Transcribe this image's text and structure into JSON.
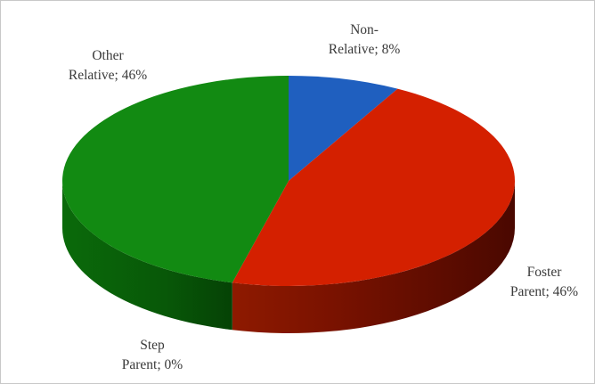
{
  "chart_data": {
    "type": "pie",
    "title": "",
    "three_d": true,
    "legend": "none",
    "data_labels": "category name and percentage, outside slices",
    "slices": [
      {
        "name": "Non-Relative",
        "label_line1": "Non-",
        "label_line2": "Relative; 8%",
        "value": 8,
        "color": "#1f5fbf"
      },
      {
        "name": "Foster Parent",
        "label_line1": "Foster",
        "label_line2": "Parent; 46%",
        "value": 46,
        "color": "#d42000"
      },
      {
        "name": "Step Parent",
        "label_line1": "Step",
        "label_line2": "Parent; 0%",
        "value": 0,
        "color": "#7a3aa0"
      },
      {
        "name": "Other Relative",
        "label_line1": "Other",
        "label_line2": "Relative; 46%",
        "value": 46,
        "color": "#128a12"
      }
    ]
  }
}
